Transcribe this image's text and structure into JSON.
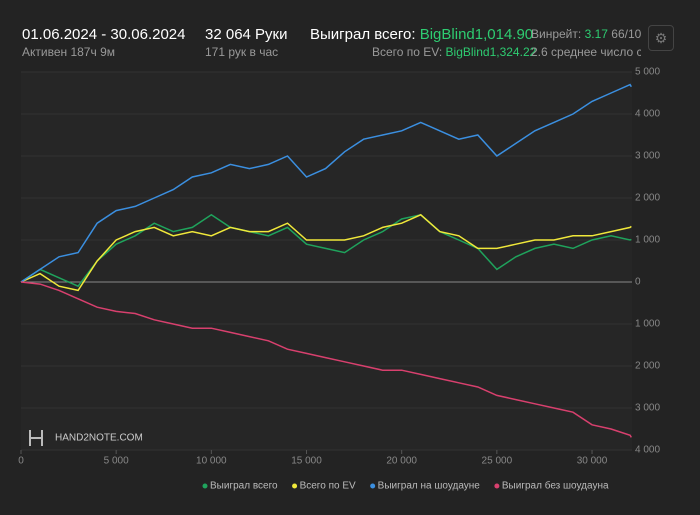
{
  "header": {
    "period": "01.06.2024 - 30.06.2024",
    "active": "Активен 187ч 9м",
    "hands": "32 064 Руки",
    "rate": "171 рук в час",
    "won_label": "Выиграл всего:",
    "won_value": "BigBlind1,014.90",
    "ev_label": "Всего по EV:",
    "ev_value": "BigBlind1,324.22",
    "winrate_label": "Винрейт:",
    "winrate_value": "3.17",
    "winrate_unit": "66/10",
    "tables": "2.6 среднее число ст",
    "logo": "HAND2NOTE.COM"
  },
  "chart_data": {
    "type": "line",
    "x": [
      0,
      1000,
      2000,
      3000,
      4000,
      5000,
      6000,
      7000,
      8000,
      9000,
      10000,
      11000,
      12000,
      13000,
      14000,
      15000,
      16000,
      17000,
      18000,
      19000,
      20000,
      21000,
      22000,
      23000,
      24000,
      25000,
      26000,
      27000,
      28000,
      29000,
      30000,
      31000,
      32000,
      32064
    ],
    "series": [
      {
        "name": "Выиграл всего",
        "color": "#1fa35c",
        "values": [
          0,
          300,
          100,
          -100,
          500,
          900,
          1100,
          1400,
          1200,
          1300,
          1600,
          1300,
          1200,
          1100,
          1300,
          900,
          800,
          700,
          1000,
          1200,
          1500,
          1600,
          1200,
          1000,
          800,
          300,
          600,
          800,
          900,
          800,
          1000,
          1100,
          1000,
          1014.9
        ]
      },
      {
        "name": "Всего по EV",
        "color": "#f0e83a",
        "values": [
          0,
          200,
          -100,
          -200,
          500,
          1000,
          1200,
          1300,
          1100,
          1200,
          1100,
          1300,
          1200,
          1200,
          1400,
          1000,
          1000,
          1000,
          1100,
          1300,
          1400,
          1600,
          1200,
          1100,
          800,
          800,
          900,
          1000,
          1000,
          1100,
          1100,
          1200,
          1300,
          1324.22
        ]
      },
      {
        "name": "Выиграл на шоудауне",
        "color": "#3b8fe0",
        "values": [
          0,
          300,
          600,
          700,
          1400,
          1700,
          1800,
          2000,
          2200,
          2500,
          2600,
          2800,
          2700,
          2800,
          3000,
          2500,
          2700,
          3100,
          3400,
          3500,
          3600,
          3800,
          3600,
          3400,
          3500,
          3000,
          3300,
          3600,
          3800,
          4000,
          4300,
          4500,
          4700,
          4650
        ]
      },
      {
        "name": "Выиграл без шоудауна",
        "color": "#d8406e",
        "values": [
          0,
          -50,
          -200,
          -400,
          -600,
          -700,
          -750,
          -900,
          -1000,
          -1100,
          -1100,
          -1200,
          -1300,
          -1400,
          -1600,
          -1700,
          -1800,
          -1900,
          -2000,
          -2100,
          -2100,
          -2200,
          -2300,
          -2400,
          -2500,
          -2700,
          -2800,
          -2900,
          -3000,
          -3100,
          -3400,
          -3500,
          -3650,
          -3700
        ]
      }
    ],
    "xlim": [
      0,
      32100
    ],
    "ylim": [
      -4000,
      5000
    ],
    "xticks": [
      0,
      {
        "value": 5000,
        "label": "5 000"
      },
      {
        "value": 10000,
        "label": "10 000"
      },
      {
        "value": 15000,
        "label": "15 000"
      },
      {
        "value": 20000,
        "label": "20 000"
      },
      {
        "value": 25000,
        "label": "25 000"
      },
      {
        "value": 30000,
        "label": "30 000"
      }
    ],
    "yticks": [
      {
        "value": 5000,
        "label": "5 000"
      },
      {
        "value": 4000,
        "label": "4 000"
      },
      {
        "value": 3000,
        "label": "3 000"
      },
      {
        "value": 2000,
        "label": "2 000"
      },
      {
        "value": 1000,
        "label": "1 000"
      },
      0,
      {
        "value": -1000,
        "label": "1 000"
      },
      {
        "value": -2000,
        "label": "2 000"
      },
      {
        "value": -3000,
        "label": "3 000"
      },
      {
        "value": -4000,
        "label": "4 000"
      }
    ],
    "grid": true
  }
}
